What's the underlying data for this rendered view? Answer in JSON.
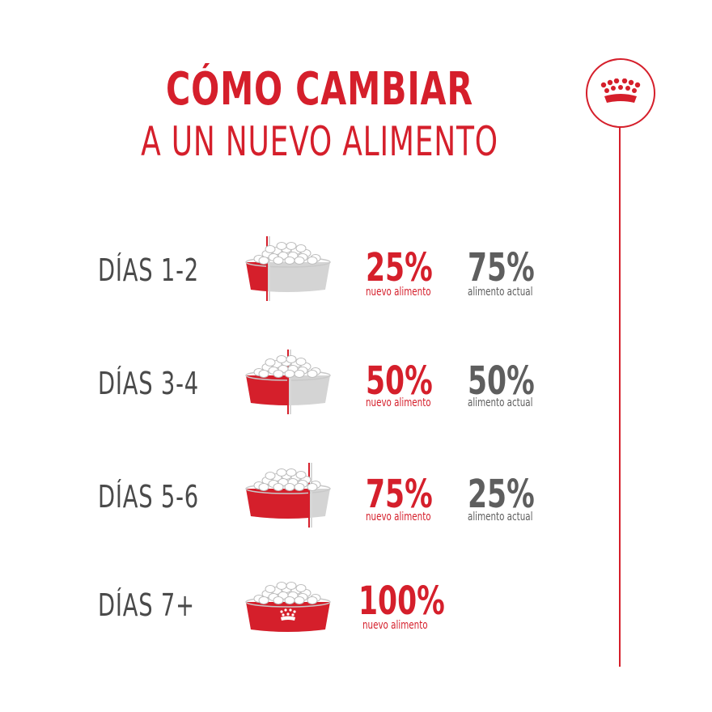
{
  "title": {
    "main": "CÓMO CAMBIAR",
    "sub": "A UN NUEVO ALIMENTO"
  },
  "brand_icon": "crown-icon",
  "colors": {
    "accent": "#d51f2b",
    "grey_text": "#5e5e5e",
    "label_text": "#4a4a4a"
  },
  "rows": [
    {
      "label": "DÍAS 1-2",
      "new_pct": "25%",
      "new_caption": "nuevo alimento",
      "current_pct": "75%",
      "current_caption": "alimento actual",
      "new_fraction": 0.25
    },
    {
      "label": "DÍAS 3-4",
      "new_pct": "50%",
      "new_caption": "nuevo alimento",
      "current_pct": "50%",
      "current_caption": "alimento actual",
      "new_fraction": 0.5
    },
    {
      "label": "DÍAS 5-6",
      "new_pct": "75%",
      "new_caption": "nuevo alimento",
      "current_pct": "25%",
      "current_caption": "alimento actual",
      "new_fraction": 0.75
    },
    {
      "label": "DÍAS 7+",
      "new_pct": "100%",
      "new_caption": "nuevo alimento",
      "new_fraction": 1.0
    }
  ]
}
